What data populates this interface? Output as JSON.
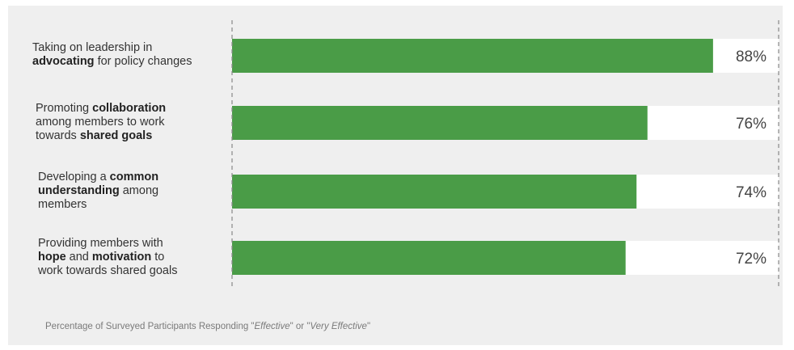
{
  "chart_data": {
    "type": "bar",
    "orientation": "horizontal",
    "categories": [
      [
        {
          "t": "Taking on leadership in",
          "b": false
        },
        {
          "t": "\n",
          "b": false
        },
        {
          "t": "advocating",
          "b": true
        },
        {
          "t": " for policy changes",
          "b": false
        }
      ],
      [
        {
          "t": "Promoting ",
          "b": false
        },
        {
          "t": "collaboration",
          "b": true
        },
        {
          "t": "\n",
          "b": false
        },
        {
          "t": "among members to work",
          "b": false
        },
        {
          "t": "\n",
          "b": false
        },
        {
          "t": "towards ",
          "b": false
        },
        {
          "t": "shared goals",
          "b": true
        }
      ],
      [
        {
          "t": "Developing a ",
          "b": false
        },
        {
          "t": "common",
          "b": true
        },
        {
          "t": "\n",
          "b": false
        },
        {
          "t": "understanding",
          "b": true
        },
        {
          "t": " among",
          "b": false
        },
        {
          "t": "\n",
          "b": false
        },
        {
          "t": "members",
          "b": false
        }
      ],
      [
        {
          "t": "Providing members with",
          "b": false
        },
        {
          "t": "\n",
          "b": false
        },
        {
          "t": "hope",
          "b": true
        },
        {
          "t": " and ",
          "b": false
        },
        {
          "t": "motivation",
          "b": true
        },
        {
          "t": " to",
          "b": false
        },
        {
          "t": "\n",
          "b": false
        },
        {
          "t": "work towards shared goals",
          "b": false
        }
      ]
    ],
    "values": [
      88,
      76,
      74,
      72
    ],
    "value_labels": [
      "88%",
      "76%",
      "74%",
      "72%"
    ],
    "xlim": [
      0,
      100
    ],
    "bar_color": "#4a9c47",
    "track_color": "#ffffff",
    "footnote": {
      "before": "Percentage of Surveyed Participants Responding \"",
      "em1": "Effective",
      "mid": "\" or \"",
      "em2": "Very Effective",
      "after": "\""
    }
  }
}
